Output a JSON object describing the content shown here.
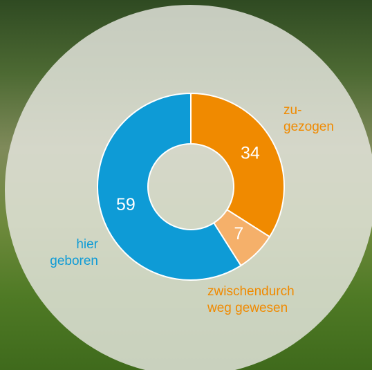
{
  "chart_data": {
    "type": "donut",
    "categories": [
      "zu-\ngezogen",
      "zwischendurch\nweg gewesen",
      "hier\ngeboren"
    ],
    "values": [
      34,
      7,
      59
    ],
    "colors": [
      "#f08a00",
      "#f5b06a",
      "#0e9bd6"
    ],
    "label_colors": [
      "#f08a00",
      "#f08a00",
      "#0e9bd6"
    ]
  }
}
